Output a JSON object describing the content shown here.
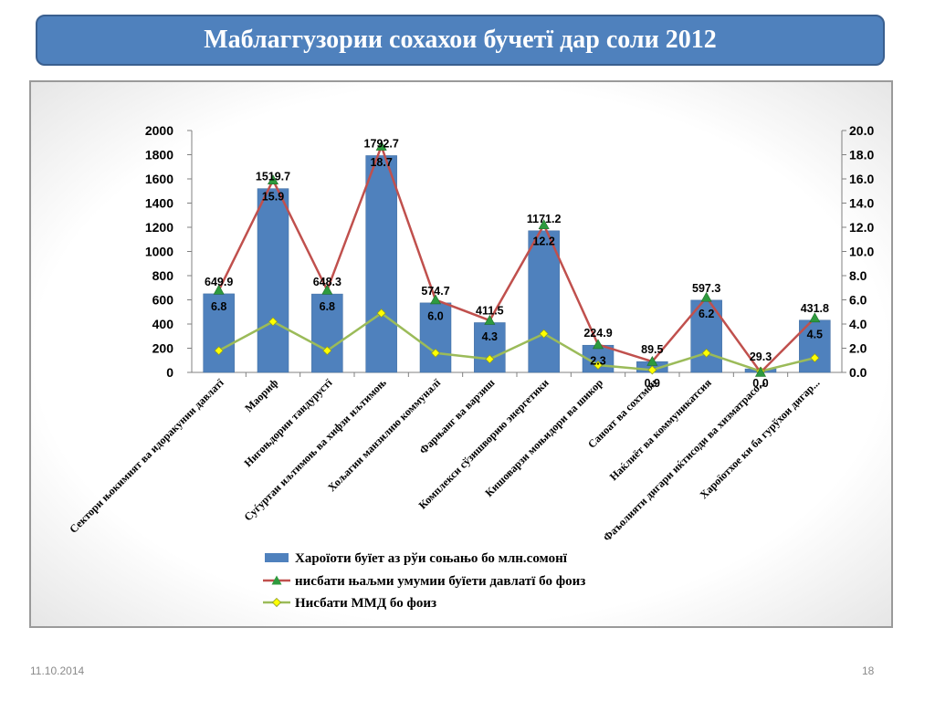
{
  "title": "Маблаггузории сохахои бучетї дар соли 2012",
  "footer": {
    "date": "11.10.2014",
    "page": "18"
  },
  "chart_data": {
    "type": "bar",
    "categories": [
      "Сектори њокимият ва идоракунии давлатї",
      "Маориф",
      "Нигоњдории тандурустї",
      "Суѓуртаи иљтимоњ ва хифзи иљтимоњ",
      "Хољагии манзилию коммуналї",
      "Фарњанг ва варзиш",
      "Комплекси сўзишворию энергетики",
      "Кишоварзи моњидори ва шикор",
      "Саноат ва сохтмон",
      "Наќлиёт ва коммуникатсия",
      "Фаъолияти дигари иќтисоди ва хизматрасони",
      "Хароїотхое ки ба гурўхои дигар дохил нашудаанд"
    ],
    "tick_labels": [
      "Сектори њокимият ва идоракунии давлатї",
      "Маориф",
      "Нигоњдории тандурустї",
      "Суѓуртаи иљтимоњ ва хифзи иљтимоњ",
      "Хољагии манзилию коммуналї",
      "Фарњанг ва варзиш",
      "Комплекси сўзишворию энергетики",
      "Кишоварзи моњидори ва шикор",
      "Саноат ва сохтмон",
      "Наќлиёт ва коммуникатсия",
      "Фаъолияти дигари иќтисоди ва хизматрасо...",
      "Хароїотхое ки ба гурўхои дигар..."
    ],
    "series": [
      {
        "name": "Хароїоти буїет аз рўи соњањо бо млн.сомонї",
        "type": "bar",
        "axis": "left",
        "color": "#4f81bd",
        "values": [
          649.9,
          1519.7,
          648.3,
          1792.7,
          574.7,
          411.5,
          1171.2,
          224.9,
          89.5,
          597.3,
          29.3,
          431.8
        ],
        "labels": [
          "649.9",
          "1519.7",
          "648.3",
          "1792.7",
          "574.7",
          "411.5",
          "1171.2",
          "224.9",
          "89.5",
          "597.3",
          "29.3",
          "431.8"
        ]
      },
      {
        "name": "нисбати њаљми умумии буїети давлатї бо фоиз",
        "type": "line",
        "axis": "right",
        "color": "#c0504d",
        "marker": "triangle",
        "marker_color": "#2e9a3e",
        "values": [
          6.8,
          15.9,
          6.8,
          18.7,
          6.0,
          4.3,
          12.2,
          2.3,
          0.9,
          6.2,
          0.0,
          4.5
        ],
        "labels": [
          "6.8",
          "15.9",
          "6.8",
          "18.7",
          "6.0",
          "4.3",
          "12.2",
          "2.3",
          "0.9",
          "6.2",
          "0.0",
          "4.5"
        ]
      },
      {
        "name": "Нисбати ММД бо фоиз",
        "type": "line",
        "axis": "right",
        "color": "#9bbb59",
        "marker": "diamond",
        "marker_color": "#ffff00",
        "values": [
          1.8,
          4.2,
          1.8,
          4.9,
          1.6,
          1.1,
          3.2,
          0.6,
          0.2,
          1.6,
          0.1,
          1.2
        ]
      }
    ],
    "left_axis": {
      "min": 0,
      "max": 2000,
      "step": 200,
      "tick_labels": [
        "0",
        "200",
        "400",
        "600",
        "800",
        "1000",
        "1200",
        "1400",
        "1600",
        "1800",
        "2000"
      ]
    },
    "right_axis": {
      "min": 0,
      "max": 20,
      "step": 2,
      "tick_labels": [
        "0.0",
        "2.0",
        "4.0",
        "6.0",
        "8.0",
        "10.0",
        "12.0",
        "14.0",
        "16.0",
        "18.0",
        "20.0"
      ]
    },
    "grid": false,
    "legend_position": "bottom"
  }
}
